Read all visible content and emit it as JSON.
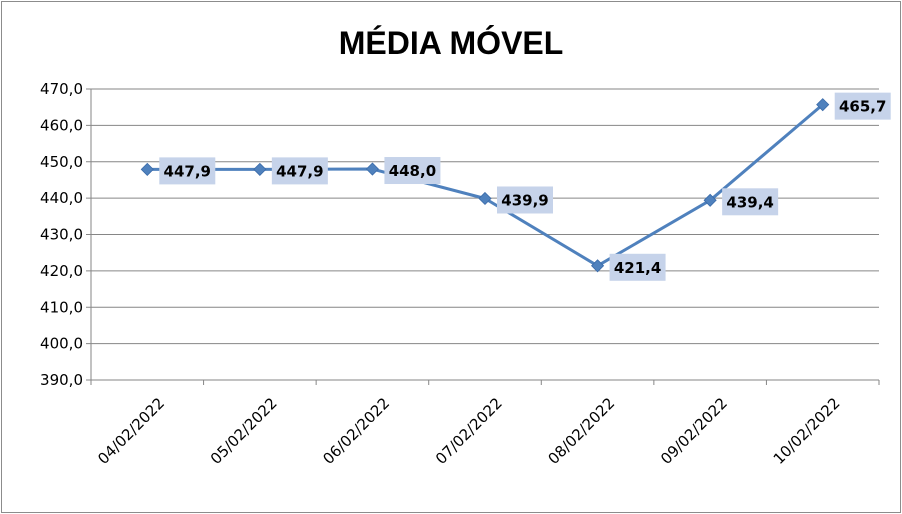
{
  "chart_data": {
    "type": "line",
    "title": "MÉDIA MÓVEL",
    "xlabel": "",
    "ylabel": "",
    "categories": [
      "04/02/2022",
      "05/02/2022",
      "06/02/2022",
      "07/02/2022",
      "08/02/2022",
      "09/02/2022",
      "10/02/2022"
    ],
    "series": [
      {
        "values": [
          447.9,
          447.9,
          448.0,
          439.9,
          421.4,
          439.4,
          465.7
        ],
        "labels": [
          "447,9",
          "447,9",
          "448,0",
          "439,9",
          "421,4",
          "439,4",
          "465,7"
        ]
      }
    ],
    "ylim": [
      390,
      470
    ],
    "yticks": [
      "390,0",
      "400,0",
      "410,0",
      "420,0",
      "430,0",
      "440,0",
      "450,0",
      "460,0",
      "470,0"
    ],
    "grid": true,
    "legend": "none",
    "line_color": "#4f81bd",
    "label_bg_color": "#c6d3ea"
  }
}
